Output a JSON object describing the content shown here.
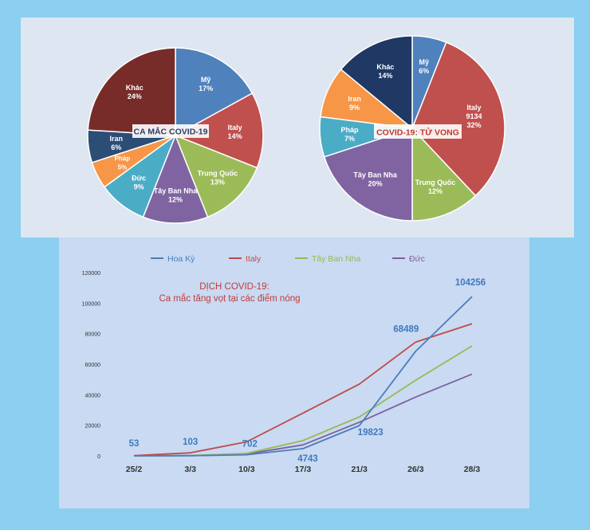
{
  "colors": {
    "page_bg": "#8ccff0",
    "top_panel_bg": "#dde6f1",
    "bottom_panel_bg": "#c9daf2",
    "line_label": "#3f79bf",
    "title_red": "#c23b3b"
  },
  "chart_data": [
    {
      "type": "pie",
      "title": "CA MẮC COVID-19",
      "slices": [
        {
          "name": "Mỹ",
          "label": "17%",
          "value": 17,
          "color": "#4f81bd"
        },
        {
          "name": "Italy",
          "label": "14%",
          "value": 14,
          "color": "#c0504d"
        },
        {
          "name": "Trung Quốc",
          "label": "13%",
          "value": 13,
          "color": "#9bbb59"
        },
        {
          "name": "Tây Ban Nha",
          "label": "12%",
          "value": 12,
          "color": "#8064a2"
        },
        {
          "name": "Đức",
          "label": "9%",
          "value": 9,
          "color": "#4bacc6"
        },
        {
          "name": "Pháp",
          "label": "5%",
          "value": 5,
          "color": "#f79646"
        },
        {
          "name": "Iran",
          "label": "6%",
          "value": 6,
          "color": "#2c4d75"
        },
        {
          "name": "Khác",
          "label": "24%",
          "value": 24,
          "color": "#772c2a"
        }
      ]
    },
    {
      "type": "pie",
      "title": "COVID-19: TỬ VONG",
      "slices": [
        {
          "name": "Mỹ",
          "label": "6%",
          "value": 6,
          "color": "#4f81bd"
        },
        {
          "name": "Italy",
          "label": "9134\n32%",
          "value": 32,
          "color": "#c0504d"
        },
        {
          "name": "Trung Quốc",
          "label": "12%",
          "value": 12,
          "color": "#9bbb59"
        },
        {
          "name": "Tây Ban Nha",
          "label": "20%",
          "value": 20,
          "color": "#8064a2"
        },
        {
          "name": "Pháp",
          "label": "7%",
          "value": 7,
          "color": "#4bacc6"
        },
        {
          "name": "Iran",
          "label": "9%",
          "value": 9,
          "color": "#f79646"
        },
        {
          "name": "Khác",
          "label": "14%",
          "value": 14,
          "color": "#1f3864"
        }
      ]
    },
    {
      "type": "line",
      "title": "DỊCH COVID-19:",
      "subtitle": "Ca mắc tăng vọt tại các điểm nóng",
      "categories": [
        "25/2",
        "3/3",
        "10/3",
        "17/3",
        "21/3",
        "26/3",
        "28/3"
      ],
      "ylim": [
        0,
        120000
      ],
      "yticks": [
        "0",
        "20000",
        "40000",
        "60000",
        "80000",
        "100000",
        "120000"
      ],
      "legend_position": "top",
      "series": [
        {
          "name": "Hoa Kỳ",
          "color": "#4a7ebb",
          "values": [
            53,
            103,
            702,
            4743,
            19823,
            68489,
            104256
          ]
        },
        {
          "name": "Italy",
          "color": "#be4b48",
          "values": [
            200,
            2000,
            9200,
            28000,
            47000,
            74500,
            86500
          ]
        },
        {
          "name": "Tây Ban Nha",
          "color": "#98b954",
          "values": [
            0,
            200,
            1600,
            10000,
            25500,
            49500,
            72000
          ]
        },
        {
          "name": "Đức",
          "color": "#7d60a0",
          "values": [
            0,
            200,
            1200,
            7200,
            22000,
            38500,
            53500
          ]
        }
      ],
      "data_labels": [
        {
          "text": "53",
          "series": 0,
          "index": 0
        },
        {
          "text": "103",
          "series": 0,
          "index": 1
        },
        {
          "text": "702",
          "series": 0,
          "index": 2
        },
        {
          "text": "4743",
          "series": 0,
          "index": 3
        },
        {
          "text": "19823",
          "series": 0,
          "index": 4
        },
        {
          "text": "68489",
          "series": 0,
          "index": 5
        },
        {
          "text": "104256",
          "series": 0,
          "index": 6
        }
      ]
    }
  ]
}
